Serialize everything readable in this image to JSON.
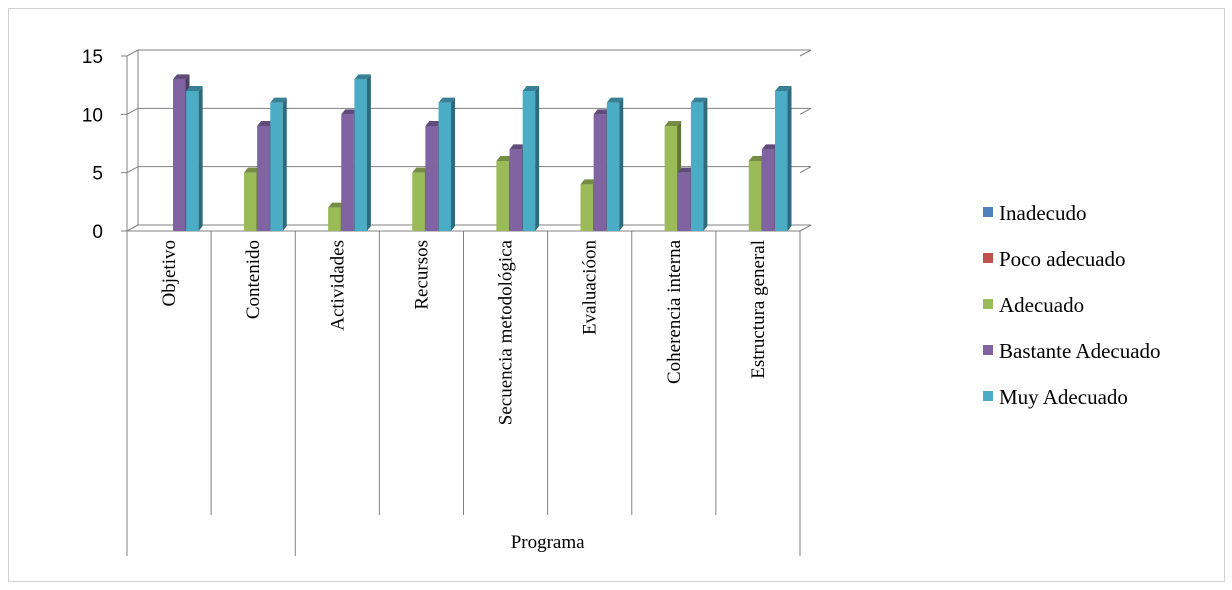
{
  "chart_data": {
    "type": "bar",
    "title": "",
    "xlabel": "",
    "ylabel": "",
    "ylim": [
      0,
      15
    ],
    "yticks": [
      0,
      5,
      10,
      15
    ],
    "grid": true,
    "legend_position": "right",
    "group_label": "Programa",
    "categories": [
      "Objetivo",
      "Contenido",
      "Actividades",
      "Recursos",
      "Secuencia metodológica",
      "Evaluacióon",
      "Coherencia interna",
      "Estructura general"
    ],
    "series": [
      {
        "name": "Inadecudo",
        "color": "#4f81bd",
        "values": [
          0,
          0,
          0,
          0,
          0,
          0,
          0,
          0
        ]
      },
      {
        "name": "Poco adecuado",
        "color": "#c0504d",
        "values": [
          0,
          0,
          0,
          0,
          0,
          0,
          0,
          0
        ]
      },
      {
        "name": "Adecuado",
        "color": "#9bbb59",
        "values": [
          0,
          5,
          2,
          5,
          6,
          4,
          9,
          6
        ]
      },
      {
        "name": "Bastante Adecuado",
        "color": "#8064a2",
        "values": [
          13,
          9,
          10,
          9,
          7,
          10,
          5,
          7
        ]
      },
      {
        "name": "Muy Adecuado",
        "color": "#4bacc6",
        "values": [
          12,
          11,
          13,
          11,
          12,
          11,
          11,
          12
        ]
      }
    ]
  }
}
